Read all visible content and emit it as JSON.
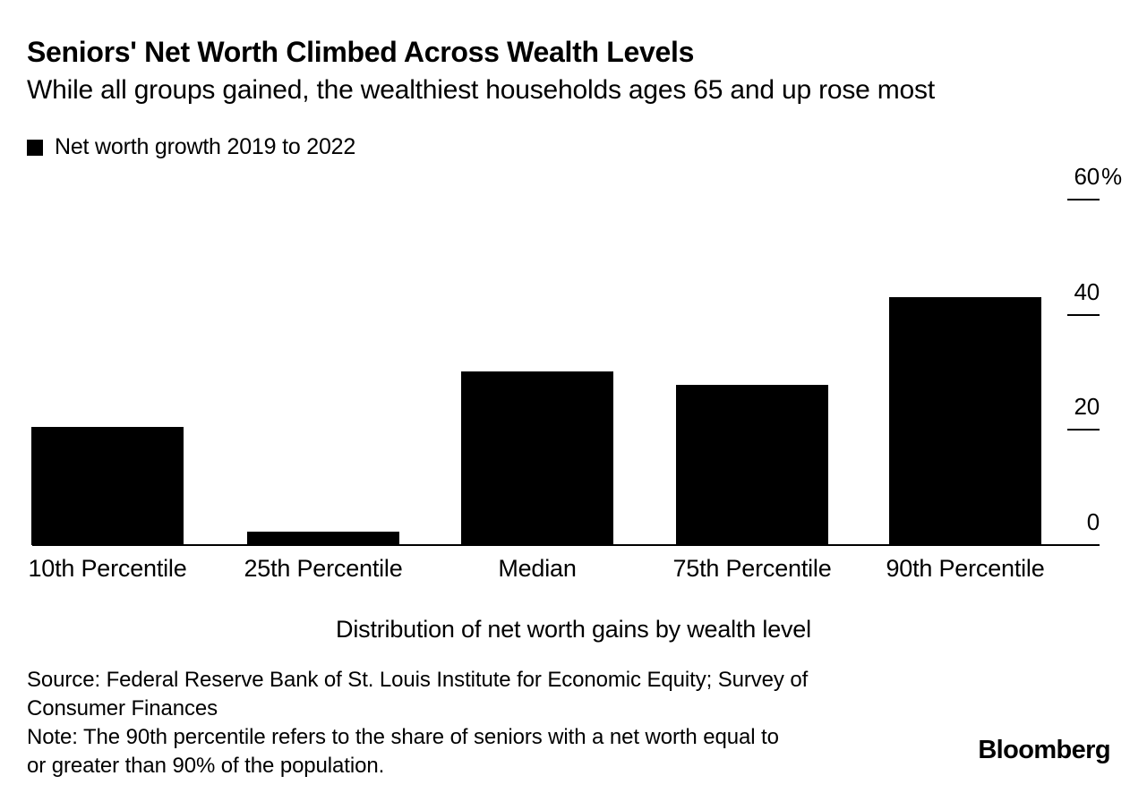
{
  "header": {
    "title": "Seniors' Net Worth Climbed Across Wealth Levels",
    "subtitle": "While all groups gained, the wealthiest households ages 65 and up rose most"
  },
  "legend": {
    "label": "Net worth growth 2019 to 2022",
    "marker_color": "#000000"
  },
  "chart_data": {
    "type": "bar",
    "title": "Seniors' Net Worth Climbed Across Wealth Levels",
    "subtitle": "While all groups gained, the wealthiest households ages 65 and up rose most",
    "series_label": "Net worth growth 2019 to 2022",
    "categories": [
      "10th Percentile",
      "25th Percentile",
      "Median",
      "75th Percentile",
      "90th Percentile"
    ],
    "values": [
      20.5,
      2.4,
      30.2,
      27.9,
      43
    ],
    "unit": "%",
    "xlabel": "Distribution of net worth gains by wealth level",
    "ylabel": "",
    "ylim": [
      0,
      60
    ],
    "y_ticks": [
      {
        "value": 60,
        "label": "60%"
      },
      {
        "value": 40,
        "label": "40"
      },
      {
        "value": 20,
        "label": "20"
      },
      {
        "value": 0,
        "label": "0"
      }
    ],
    "bar_color": "#000000",
    "grid": false,
    "legend_position": "top-left",
    "y_axis_side": "right"
  },
  "xaxis": {
    "title": "Distribution of net worth gains by wealth level"
  },
  "footer": {
    "source_lines": [
      "Source: Federal Reserve Bank of St. Louis Institute for Economic Equity; Survey of",
      "Consumer Finances"
    ],
    "note_lines": [
      "Note: The 90th percentile refers to the share of seniors with a net worth equal to",
      "or greater than 90% of the population."
    ],
    "brand": "Bloomberg"
  }
}
